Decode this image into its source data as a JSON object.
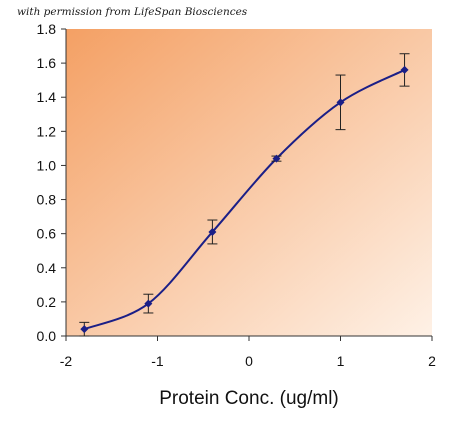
{
  "credit_text": "with permission from LifeSpan Biosciences",
  "chart_data": {
    "type": "line",
    "title": "",
    "xlabel": "Protein Conc. (ug/ml)",
    "ylabel": "",
    "xlim": [
      -2,
      2
    ],
    "ylim": [
      0,
      1.8
    ],
    "xticks": [
      "-2",
      "-1",
      "0",
      "1",
      "2"
    ],
    "yticks": [
      "0.0",
      "0.2",
      "0.4",
      "0.6",
      "0.8",
      "1.0",
      "1.2",
      "1.4",
      "1.6",
      "1.8"
    ],
    "grid": false,
    "legend": "none",
    "series": [
      {
        "color": "#1b1f87",
        "points": [
          {
            "x": -1.8,
            "y": 0.04,
            "err": 0.04
          },
          {
            "x": -1.1,
            "y": 0.19,
            "err": 0.055
          },
          {
            "x": -0.4,
            "y": 0.61,
            "err": 0.07
          },
          {
            "x": 0.3,
            "y": 1.04,
            "err": 0.015
          },
          {
            "x": 1.0,
            "y": 1.37,
            "err": 0.16
          },
          {
            "x": 1.7,
            "y": 1.56,
            "err": 0.095
          }
        ]
      }
    ],
    "background_gradient": [
      "#f4a064",
      "#fef1e6"
    ]
  }
}
